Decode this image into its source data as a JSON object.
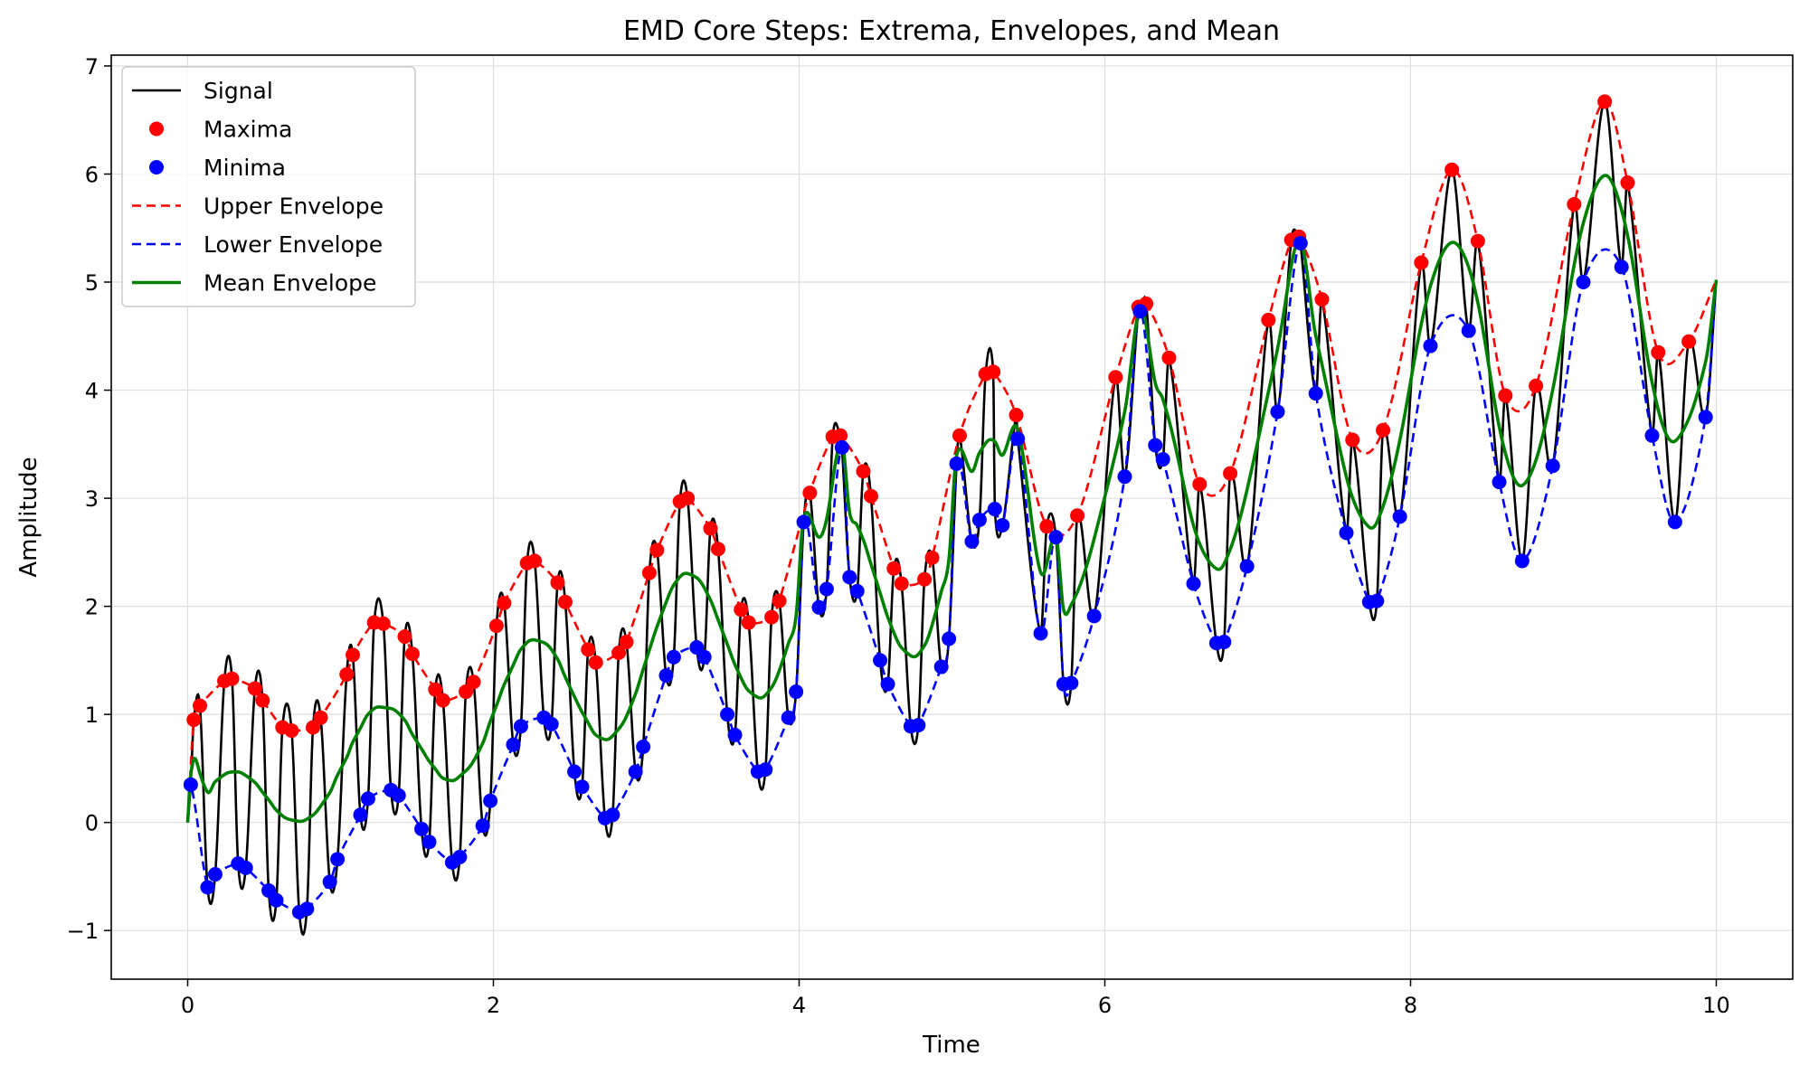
{
  "chart_data": {
    "type": "line",
    "title": "EMD Core Steps: Extrema, Envelopes, and Mean",
    "xlabel": "Time",
    "ylabel": "Amplitude",
    "xlim": [
      -0.5,
      10.5
    ],
    "ylim": [
      -1.45,
      7.1
    ],
    "grid": true,
    "legend_position": "top-left",
    "x_ticks": [
      0,
      2,
      4,
      6,
      8,
      10
    ],
    "x_tick_labels": [
      "0",
      "2",
      "4",
      "6",
      "8",
      "10"
    ],
    "y_ticks": [
      -1,
      0,
      1,
      2,
      3,
      4,
      5,
      6,
      7
    ],
    "y_tick_labels": [
      "−1",
      "0",
      "1",
      "2",
      "3",
      "4",
      "5",
      "6",
      "7"
    ],
    "series": [
      {
        "name": "Signal",
        "color": "#000000",
        "style": "solid"
      },
      {
        "name": "Maxima",
        "color": "#ff0000",
        "style": "marker",
        "points": [
          [
            0.04,
            0.95
          ],
          [
            0.08,
            1.08
          ],
          [
            0.24,
            1.31
          ],
          [
            0.29,
            1.33
          ],
          [
            0.44,
            1.24
          ],
          [
            0.49,
            1.13
          ],
          [
            0.62,
            0.88
          ],
          [
            0.68,
            0.85
          ],
          [
            0.82,
            0.88
          ],
          [
            0.87,
            0.97
          ],
          [
            1.04,
            1.37
          ],
          [
            1.08,
            1.55
          ],
          [
            1.22,
            1.85
          ],
          [
            1.28,
            1.84
          ],
          [
            1.42,
            1.72
          ],
          [
            1.47,
            1.56
          ],
          [
            1.62,
            1.23
          ],
          [
            1.67,
            1.13
          ],
          [
            1.82,
            1.21
          ],
          [
            1.87,
            1.3
          ],
          [
            2.02,
            1.82
          ],
          [
            2.07,
            2.03
          ],
          [
            2.22,
            2.4
          ],
          [
            2.27,
            2.42
          ],
          [
            2.42,
            2.22
          ],
          [
            2.47,
            2.04
          ],
          [
            2.62,
            1.6
          ],
          [
            2.67,
            1.48
          ],
          [
            2.82,
            1.57
          ],
          [
            2.87,
            1.67
          ],
          [
            3.02,
            2.31
          ],
          [
            3.07,
            2.52
          ],
          [
            3.22,
            2.97
          ],
          [
            3.27,
            3.0
          ],
          [
            3.42,
            2.72
          ],
          [
            3.47,
            2.53
          ],
          [
            3.62,
            1.97
          ],
          [
            3.67,
            1.85
          ],
          [
            3.82,
            1.9
          ],
          [
            3.87,
            2.05
          ],
          [
            4.07,
            3.05
          ],
          [
            4.22,
            3.57
          ],
          [
            4.27,
            3.58
          ],
          [
            4.42,
            3.25
          ],
          [
            4.47,
            3.02
          ],
          [
            4.62,
            2.35
          ],
          [
            4.67,
            2.21
          ],
          [
            4.82,
            2.25
          ],
          [
            4.87,
            2.45
          ],
          [
            5.05,
            3.58
          ],
          [
            5.22,
            4.15
          ],
          [
            5.27,
            4.17
          ],
          [
            5.42,
            3.77
          ],
          [
            5.62,
            2.74
          ],
          [
            5.82,
            2.84
          ],
          [
            6.07,
            4.12
          ],
          [
            6.22,
            4.77
          ],
          [
            6.27,
            4.8
          ],
          [
            6.42,
            4.3
          ],
          [
            6.62,
            3.13
          ],
          [
            6.82,
            3.23
          ],
          [
            7.07,
            4.65
          ],
          [
            7.22,
            5.39
          ],
          [
            7.27,
            5.42
          ],
          [
            7.42,
            4.84
          ],
          [
            7.62,
            3.54
          ],
          [
            7.82,
            3.63
          ],
          [
            8.07,
            5.18
          ],
          [
            8.27,
            6.04
          ],
          [
            8.44,
            5.38
          ],
          [
            8.62,
            3.95
          ],
          [
            8.82,
            4.04
          ],
          [
            9.07,
            5.72
          ],
          [
            9.27,
            6.67
          ],
          [
            9.42,
            5.92
          ],
          [
            9.62,
            4.35
          ],
          [
            9.82,
            4.45
          ]
        ]
      },
      {
        "name": "Minima",
        "color": "#0000ff",
        "style": "marker",
        "points": [
          [
            0.02,
            0.35
          ],
          [
            0.13,
            -0.6
          ],
          [
            0.18,
            -0.48
          ],
          [
            0.33,
            -0.38
          ],
          [
            0.38,
            -0.42
          ],
          [
            0.53,
            -0.63
          ],
          [
            0.58,
            -0.72
          ],
          [
            0.73,
            -0.83
          ],
          [
            0.78,
            -0.8
          ],
          [
            0.93,
            -0.55
          ],
          [
            0.98,
            -0.34
          ],
          [
            1.13,
            0.07
          ],
          [
            1.18,
            0.22
          ],
          [
            1.33,
            0.3
          ],
          [
            1.38,
            0.25
          ],
          [
            1.53,
            -0.06
          ],
          [
            1.58,
            -0.18
          ],
          [
            1.73,
            -0.37
          ],
          [
            1.78,
            -0.32
          ],
          [
            1.93,
            -0.03
          ],
          [
            1.98,
            0.2
          ],
          [
            2.13,
            0.72
          ],
          [
            2.18,
            0.89
          ],
          [
            2.33,
            0.97
          ],
          [
            2.38,
            0.91
          ],
          [
            2.53,
            0.47
          ],
          [
            2.58,
            0.33
          ],
          [
            2.73,
            0.04
          ],
          [
            2.78,
            0.07
          ],
          [
            2.93,
            0.47
          ],
          [
            2.98,
            0.7
          ],
          [
            3.13,
            1.36
          ],
          [
            3.18,
            1.53
          ],
          [
            3.33,
            1.62
          ],
          [
            3.38,
            1.53
          ],
          [
            3.53,
            1.0
          ],
          [
            3.58,
            0.81
          ],
          [
            3.73,
            0.47
          ],
          [
            3.78,
            0.49
          ],
          [
            3.93,
            0.97
          ],
          [
            3.98,
            1.21
          ],
          [
            4.03,
            2.78
          ],
          [
            4.13,
            1.99
          ],
          [
            4.18,
            2.16
          ],
          [
            4.28,
            3.47
          ],
          [
            4.33,
            2.27
          ],
          [
            4.38,
            2.14
          ],
          [
            4.53,
            1.5
          ],
          [
            4.58,
            1.28
          ],
          [
            4.73,
            0.89
          ],
          [
            4.78,
            0.9
          ],
          [
            4.93,
            1.44
          ],
          [
            4.98,
            1.7
          ],
          [
            5.03,
            3.32
          ],
          [
            5.13,
            2.6
          ],
          [
            5.18,
            2.8
          ],
          [
            5.28,
            2.9
          ],
          [
            5.33,
            2.75
          ],
          [
            5.43,
            3.55
          ],
          [
            5.58,
            1.75
          ],
          [
            5.68,
            2.64
          ],
          [
            5.73,
            1.28
          ],
          [
            5.78,
            1.29
          ],
          [
            5.93,
            1.91
          ],
          [
            6.13,
            3.2
          ],
          [
            6.23,
            4.73
          ],
          [
            6.33,
            3.49
          ],
          [
            6.38,
            3.36
          ],
          [
            6.58,
            2.21
          ],
          [
            6.73,
            1.66
          ],
          [
            6.78,
            1.67
          ],
          [
            6.93,
            2.37
          ],
          [
            7.13,
            3.8
          ],
          [
            7.28,
            5.36
          ],
          [
            7.38,
            3.97
          ],
          [
            7.58,
            2.68
          ],
          [
            7.73,
            2.04
          ],
          [
            7.78,
            2.05
          ],
          [
            7.93,
            2.83
          ],
          [
            8.13,
            4.41
          ],
          [
            8.38,
            4.55
          ],
          [
            8.58,
            3.15
          ],
          [
            8.73,
            2.42
          ],
          [
            8.93,
            3.3
          ],
          [
            9.13,
            5.0
          ],
          [
            9.38,
            5.14
          ],
          [
            9.58,
            3.58
          ],
          [
            9.73,
            2.78
          ],
          [
            9.93,
            3.75
          ]
        ]
      },
      {
        "name": "Upper Envelope",
        "color": "#ff0000",
        "style": "dashed"
      },
      {
        "name": "Lower Envelope",
        "color": "#0000ff",
        "style": "dashed"
      },
      {
        "name": "Mean Envelope",
        "color": "#008000",
        "style": "solid"
      }
    ]
  }
}
